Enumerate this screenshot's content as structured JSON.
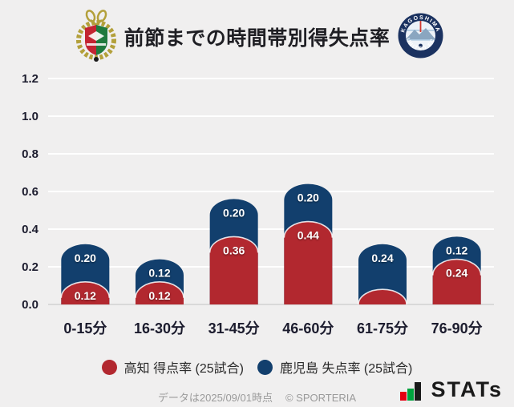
{
  "header": {
    "title": "前節までの時間帯別得失点率",
    "right_logo": {
      "top_text": "KAGOSHIMA",
      "bottom_text": "UNITED FC"
    }
  },
  "chart_data": {
    "type": "bar",
    "stacked": true,
    "title": "前節までの時間帯別得失点率",
    "categories": [
      "0-15分",
      "16-30分",
      "31-45分",
      "46-60分",
      "61-75分",
      "76-90分"
    ],
    "series": [
      {
        "name": "高知 得点率 (25試合)",
        "color": "#b2282f",
        "values": [
          0.12,
          0.12,
          0.36,
          0.44,
          0.08,
          0.24
        ],
        "labels": [
          "0.12",
          "0.12",
          "0.36",
          "0.44",
          "",
          "0.24"
        ]
      },
      {
        "name": "鹿児島 失点率 (25試合)",
        "color": "#123f6d",
        "values": [
          0.2,
          0.12,
          0.2,
          0.2,
          0.24,
          0.12
        ],
        "labels": [
          "0.20",
          "0.12",
          "0.20",
          "0.20",
          "0.24",
          "0.12"
        ]
      }
    ],
    "ylim": [
      0,
      1.2
    ],
    "yticks": [
      0,
      0.2,
      0.4,
      0.6,
      0.8,
      1.0,
      1.2
    ],
    "grid": true,
    "legend_position": "bottom",
    "colors": {
      "background": "#f0efef",
      "grid": "#ffffff",
      "baseline": "#d9d9d9",
      "axis_text": "#1c1c2e"
    }
  },
  "legend": {
    "items": [
      {
        "label": "高知 得点率 (25試合)",
        "color": "#b2282f"
      },
      {
        "label": "鹿児島 失点率 (25試合)",
        "color": "#123f6d"
      }
    ]
  },
  "footer": {
    "note": "データは2025/09/01時点",
    "copyright": "© SPORTERIA",
    "stats_logo_text": "STATs"
  }
}
